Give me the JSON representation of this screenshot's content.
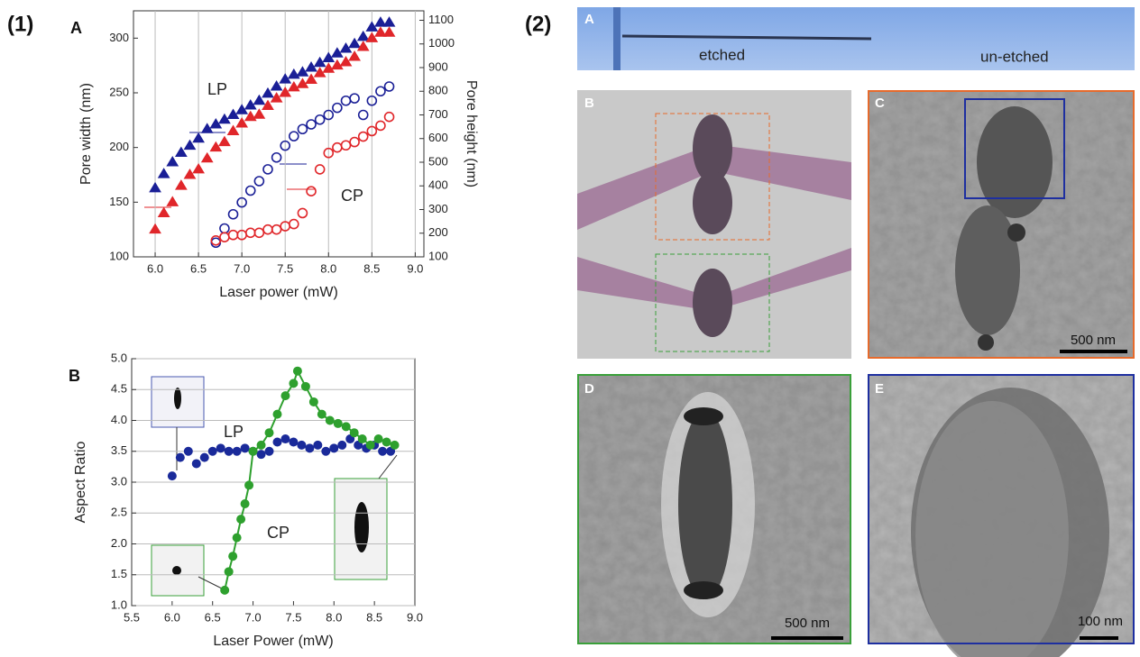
{
  "figure_labels": [
    "(1)",
    "(2)"
  ],
  "chart_data": [
    {
      "type": "scatter",
      "panel_label": "A",
      "xlabel": "Laser power (mW)",
      "ylabel": "Pore width (nm)",
      "y2label": "Pore height (nm)",
      "xlim": [
        5.75,
        9.1
      ],
      "ylim": [
        100,
        325
      ],
      "y2lim": [
        100,
        1140
      ],
      "grid": "x",
      "xticks": [
        {
          "value": 6,
          "label": "6.0"
        },
        {
          "value": 6.5,
          "label": "6.5"
        },
        {
          "value": 7,
          "label": "7.0"
        },
        {
          "value": 7.5,
          "label": "7.5"
        },
        {
          "value": 8,
          "label": "8.0"
        },
        {
          "value": 8.5,
          "label": "8.5"
        },
        {
          "value": 9,
          "label": "9.0"
        }
      ],
      "yticks": [
        100,
        150,
        200,
        250,
        300
      ],
      "y2ticks": [
        100,
        200,
        300,
        400,
        500,
        600,
        700,
        800,
        900,
        1000,
        1100
      ],
      "annotations": [
        "LP",
        "CP"
      ],
      "series": [
        {
          "color": "#1a1f96",
          "marker": "triangle",
          "filled": true,
          "axis": "y2",
          "x": [
            6.0,
            6.1,
            6.2,
            6.3,
            6.4,
            6.5,
            6.6,
            6.7,
            6.8,
            6.9,
            7.0,
            7.1,
            7.2,
            7.3,
            7.4,
            7.5,
            7.6,
            7.7,
            7.8,
            7.9,
            8.0,
            8.1,
            8.2,
            8.3,
            8.4,
            8.5,
            8.6,
            8.7
          ],
          "values": [
            390,
            450,
            500,
            540,
            570,
            600,
            640,
            660,
            680,
            700,
            720,
            740,
            760,
            790,
            820,
            850,
            870,
            880,
            900,
            920,
            940,
            960,
            980,
            1000,
            1030,
            1070,
            1090,
            1090
          ]
        },
        {
          "color": "#e0262a",
          "marker": "triangle",
          "filled": true,
          "x": [
            6.0,
            6.1,
            6.2,
            6.3,
            6.4,
            6.5,
            6.6,
            6.7,
            6.8,
            6.9,
            7.0,
            7.1,
            7.2,
            7.3,
            7.4,
            7.5,
            7.6,
            7.7,
            7.8,
            7.9,
            8.0,
            8.1,
            8.2,
            8.3,
            8.4,
            8.5,
            8.6,
            8.7
          ],
          "values": [
            125,
            140,
            150,
            165,
            175,
            180,
            190,
            200,
            205,
            215,
            222,
            228,
            230,
            238,
            245,
            250,
            255,
            258,
            262,
            268,
            272,
            275,
            278,
            283,
            292,
            300,
            305,
            305
          ]
        },
        {
          "color": "#1a1f96",
          "marker": "circle",
          "filled": false,
          "axis": "y2",
          "x": [
            6.7,
            6.8,
            6.9,
            7.0,
            7.1,
            7.2,
            7.3,
            7.4,
            7.5,
            7.6,
            7.7,
            7.8,
            7.9,
            8.0,
            8.1,
            8.2,
            8.3,
            8.4,
            8.5,
            8.6,
            8.7
          ],
          "values": [
            160,
            220,
            280,
            330,
            380,
            420,
            470,
            520,
            570,
            610,
            640,
            660,
            680,
            700,
            730,
            760,
            770,
            700,
            760,
            800,
            820
          ]
        },
        {
          "color": "#e0262a",
          "marker": "circle",
          "filled": false,
          "x": [
            6.7,
            6.8,
            6.9,
            7.0,
            7.1,
            7.2,
            7.3,
            7.4,
            7.5,
            7.6,
            7.7,
            7.8,
            7.9,
            8.0,
            8.1,
            8.2,
            8.3,
            8.4,
            8.5,
            8.6,
            8.7
          ],
          "values": [
            115,
            118,
            120,
            120,
            122,
            122,
            125,
            125,
            128,
            130,
            140,
            160,
            180,
            195,
            200,
            202,
            205,
            210,
            215,
            220,
            228
          ]
        }
      ]
    },
    {
      "type": "scatter",
      "panel_label": "B",
      "xlabel": "Laser Power (mW)",
      "ylabel": "Aspect Ratio",
      "xlim": [
        5.5,
        9.0
      ],
      "ylim": [
        1.0,
        5.0
      ],
      "grid": "y",
      "xticks": [
        {
          "value": 5.5,
          "label": "5.5"
        },
        {
          "value": 6,
          "label": "6.0"
        },
        {
          "value": 6.5,
          "label": "6.5"
        },
        {
          "value": 7,
          "label": "7.0"
        },
        {
          "value": 7.5,
          "label": "7.5"
        },
        {
          "value": 8,
          "label": "8.0"
        },
        {
          "value": 8.5,
          "label": "8.5"
        },
        {
          "value": 9,
          "label": "9.0"
        }
      ],
      "yticks": [
        {
          "value": 1,
          "label": "1.0"
        },
        1.5,
        {
          "value": 2,
          "label": "2.0"
        },
        2.5,
        {
          "value": 3,
          "label": "3.0"
        },
        3.5,
        {
          "value": 4,
          "label": "4.0"
        },
        4.5,
        {
          "value": 5,
          "label": "5.0"
        }
      ],
      "series": [
        {
          "name": "LP",
          "color": "#1a2a9a",
          "marker": "circle",
          "filled": true,
          "x": [
            6.0,
            6.1,
            6.2,
            6.3,
            6.4,
            6.5,
            6.6,
            6.7,
            6.8,
            6.9,
            7.0,
            7.1,
            7.2,
            7.3,
            7.4,
            7.5,
            7.6,
            7.7,
            7.8,
            7.9,
            8.0,
            8.1,
            8.2,
            8.3,
            8.4,
            8.5,
            8.6,
            8.7
          ],
          "values": [
            3.1,
            3.4,
            3.5,
            3.3,
            3.4,
            3.5,
            3.55,
            3.5,
            3.5,
            3.55,
            3.5,
            3.45,
            3.5,
            3.65,
            3.7,
            3.65,
            3.6,
            3.55,
            3.6,
            3.5,
            3.55,
            3.6,
            3.7,
            3.6,
            3.55,
            3.6,
            3.5,
            3.5
          ]
        },
        {
          "name": "CP",
          "color": "#2ea02e",
          "marker": "circle",
          "filled": true,
          "connect": true,
          "x": [
            6.65,
            6.7,
            6.75,
            6.8,
            6.85,
            6.9,
            6.95,
            7.0,
            7.1,
            7.2,
            7.3,
            7.4,
            7.5,
            7.55,
            7.65,
            7.75,
            7.85,
            7.95,
            8.05,
            8.15,
            8.25,
            8.35,
            8.45,
            8.55,
            8.65,
            8.75
          ],
          "values": [
            1.25,
            1.55,
            1.8,
            2.1,
            2.4,
            2.65,
            2.95,
            3.5,
            3.6,
            3.8,
            4.1,
            4.4,
            4.6,
            4.8,
            4.55,
            4.3,
            4.1,
            4.0,
            3.95,
            3.9,
            3.8,
            3.7,
            3.6,
            3.7,
            3.65,
            3.6
          ]
        }
      ]
    }
  ],
  "panels": [
    {
      "label": "A",
      "texts": [
        "etched",
        "un-etched"
      ]
    },
    {
      "label": "B"
    },
    {
      "label": "C",
      "scale_bar": "500 nm"
    },
    {
      "label": "D",
      "scale_bar": "500 nm"
    },
    {
      "label": "E",
      "scale_bar": "100 nm"
    }
  ]
}
